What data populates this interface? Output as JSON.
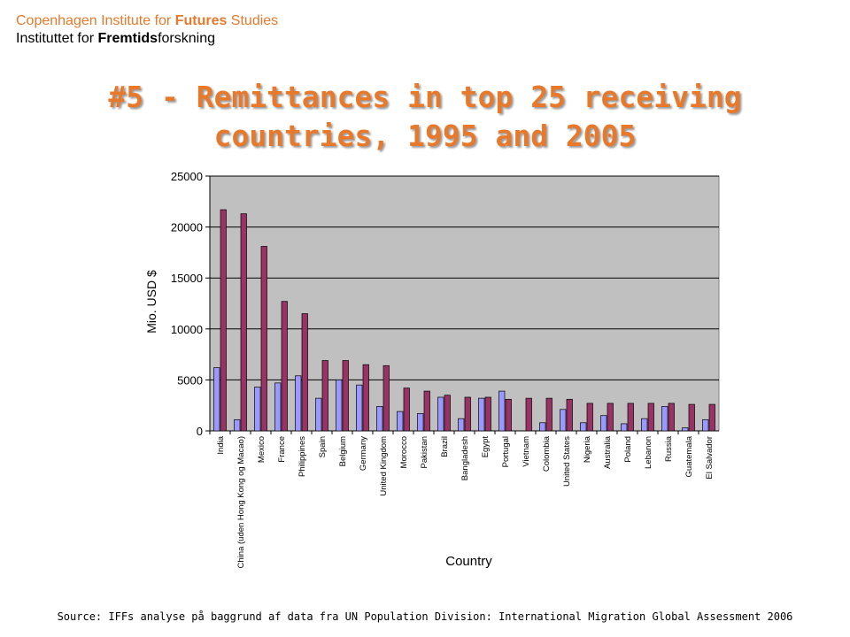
{
  "header": {
    "line1_pre": "Copenhagen Institute for ",
    "line1_bold": "Futures",
    "line1_post": " Studies",
    "line2_pre": "Instituttet for ",
    "line2_bold": "Fremtids",
    "line2_post": "forskning"
  },
  "title_line1": "#5 - Remittances in top 25 receiving",
  "title_line2": "countries, 1995 and 2005",
  "source": "Source: IFFs analyse på baggrund af data fra UN Population Division: International Migration Global Assessment 2006",
  "colors": {
    "header_accent": "#e8792b",
    "series_1995": "#9999ff",
    "series_2005": "#993366",
    "plot_background": "#c0c0c0"
  },
  "chart_data": {
    "type": "bar",
    "xlabel": "Country",
    "ylabel": "Mio. USD $",
    "ylim": [
      0,
      25000
    ],
    "yticks": [
      0,
      5000,
      10000,
      15000,
      20000,
      25000
    ],
    "grid": true,
    "categories": [
      "India",
      "China (uden Hong Kong og Macao)",
      "Mexico",
      "France",
      "Philippines",
      "Spain",
      "Belgium",
      "Germany",
      "United Kingdom",
      "Morocco",
      "Pakistan",
      "Brazil",
      "Bangladesh",
      "Egypt",
      "Portugal",
      "Vietnam",
      "Colombia",
      "United States",
      "Nigeria",
      "Australia",
      "Poland",
      "Lebanon",
      "Russia",
      "Guatemala",
      "El Salvador"
    ],
    "series": [
      {
        "name": "1995",
        "values": [
          6200,
          1100,
          4300,
          4700,
          5400,
          3200,
          5000,
          4500,
          2400,
          1900,
          1700,
          3300,
          1200,
          3200,
          3900,
          0,
          800,
          2100,
          800,
          1500,
          700,
          1200,
          2400,
          300,
          1100
        ]
      },
      {
        "name": "2005",
        "values": [
          21700,
          21300,
          18100,
          12700,
          11500,
          6900,
          6900,
          6500,
          6400,
          4200,
          3900,
          3500,
          3300,
          3300,
          3100,
          3200,
          3200,
          3100,
          2700,
          2700,
          2700,
          2700,
          2700,
          2600,
          2600
        ]
      }
    ]
  }
}
